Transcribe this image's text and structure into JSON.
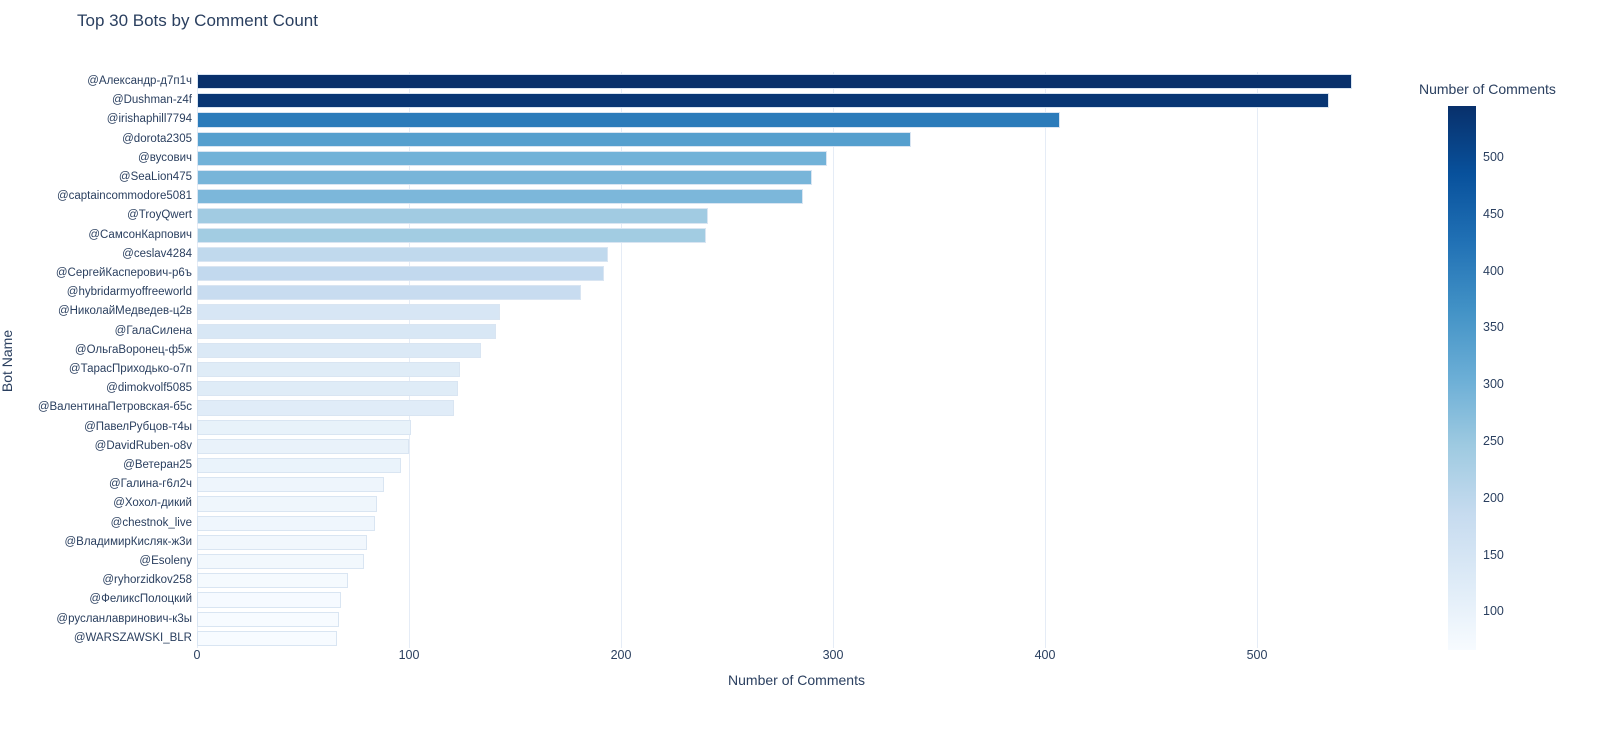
{
  "chart": {
    "title": "Top 30 Bots by Comment Count",
    "xlabel": "Number of Comments",
    "ylabel": "Bot Name"
  },
  "chart_data": {
    "type": "bar",
    "orientation": "horizontal",
    "title": "Top 30 Bots by Comment Count",
    "xlabel": "Number of Comments",
    "ylabel": "Bot Name",
    "xlim": [
      0,
      565
    ],
    "xticks": [
      0,
      100,
      200,
      300,
      400,
      500
    ],
    "grid": true,
    "legend": "colorbar-right",
    "categories": [
      "@Александр-д7п1ч",
      "@Dushman-z4f",
      "@irishaphill7794",
      "@dorota2305",
      "@вусович",
      "@SeaLion475",
      "@captaincommodore5081",
      "@TroyQwert",
      "@СамсонКарпович",
      "@ceslav4284",
      "@СергейКасперович-р6ъ",
      "@hybridarmyoffreeworld",
      "@НиколайМедведев-ц2в",
      "@ГалаСилена",
      "@ОльгаВоронец-ф5ж",
      "@ТарасПриходько-о7п",
      "@dimokvolf5085",
      "@ВалентинаПетровская-б5с",
      "@ПавелРубцов-т4ы",
      "@DavidRuben-o8v",
      "@Ветеран25",
      "@Галина-г6л2ч",
      "@Хохол-дикий",
      "@chestnok_live",
      "@ВладимирКисляк-ж3и",
      "@Esoleny",
      "@ryhorzidkov258",
      "@ФеликсПолоцкий",
      "@русланлавринович-к3ы",
      "@WARSZAWSKI_BLR"
    ],
    "values": [
      545,
      534,
      407,
      337,
      297,
      290,
      286,
      241,
      240,
      194,
      192,
      181,
      143,
      141,
      134,
      124,
      123,
      121,
      101,
      100,
      96,
      88,
      85,
      84,
      80,
      79,
      71,
      68,
      67,
      66
    ],
    "color_mapping": "value",
    "colorscale_name": "Blues",
    "cmin": 66,
    "cmax": 545
  },
  "colorbar": {
    "title": "Number of Comments",
    "ticks": [
      500,
      450,
      400,
      350,
      300,
      250,
      200,
      150,
      100
    ]
  },
  "colors": {
    "text": "#2a3f5f",
    "gridline": "#e5ecf6",
    "bar_border": "#d9e5f2",
    "background": "#ffffff",
    "colorscale": [
      "#f7fbff",
      "#deebf7",
      "#c6dbef",
      "#9ecae1",
      "#6baed6",
      "#4292c6",
      "#2171b5",
      "#08519c",
      "#08306b"
    ]
  }
}
